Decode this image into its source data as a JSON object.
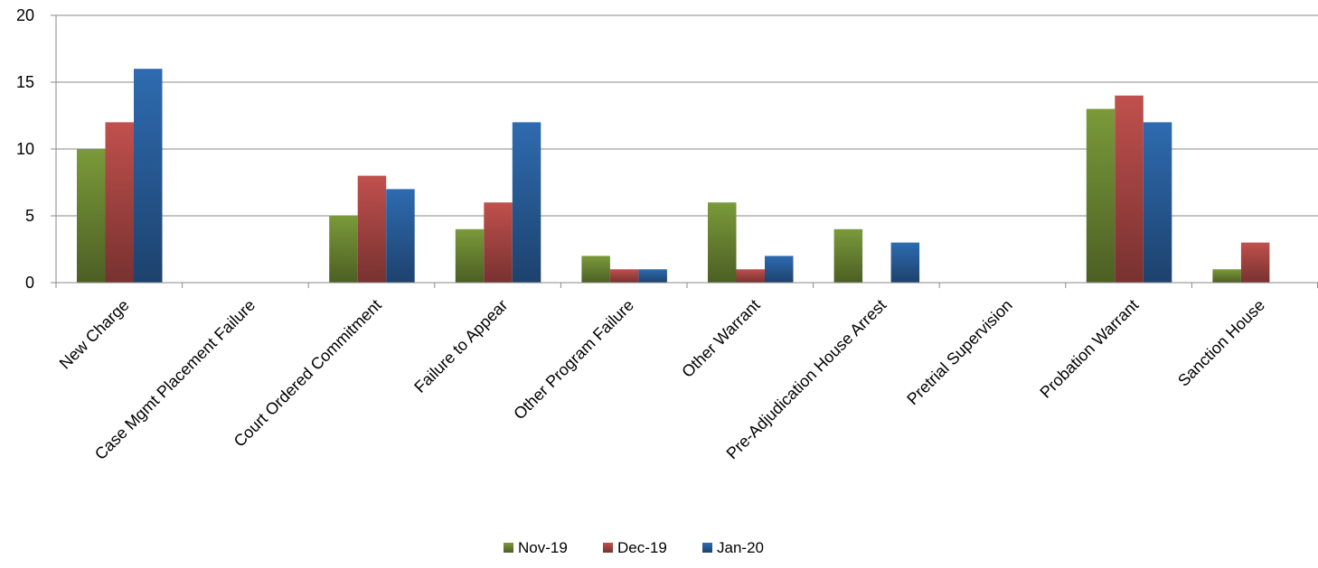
{
  "chart_data": {
    "type": "bar",
    "categories": [
      "New Charge",
      "Case Mgmt Placement Failure",
      "Court Ordered Commitment",
      "Failure to Appear",
      "Other Program Failure",
      "Other Warrant",
      "Pre-Adjudication House Arrest",
      "Pretrial Supervision",
      "Probation Warrant",
      "Sanction House"
    ],
    "series": [
      {
        "name": "Nov-19",
        "color": "#7a9a3a",
        "values": [
          10,
          0,
          5,
          4,
          2,
          6,
          4,
          0,
          13,
          1
        ]
      },
      {
        "name": "Dec-19",
        "color": "#c0504d",
        "values": [
          12,
          0,
          8,
          6,
          1,
          1,
          0,
          0,
          14,
          3
        ]
      },
      {
        "name": "Jan-20",
        "color": "#2e6bb0",
        "values": [
          16,
          0,
          7,
          12,
          1,
          2,
          3,
          0,
          12,
          0
        ]
      }
    ],
    "ylim": [
      0,
      20
    ],
    "yticks": [
      0,
      5,
      10,
      15,
      20
    ],
    "grid": true,
    "legend": "bottom",
    "title": "",
    "xlabel": "",
    "ylabel": ""
  }
}
